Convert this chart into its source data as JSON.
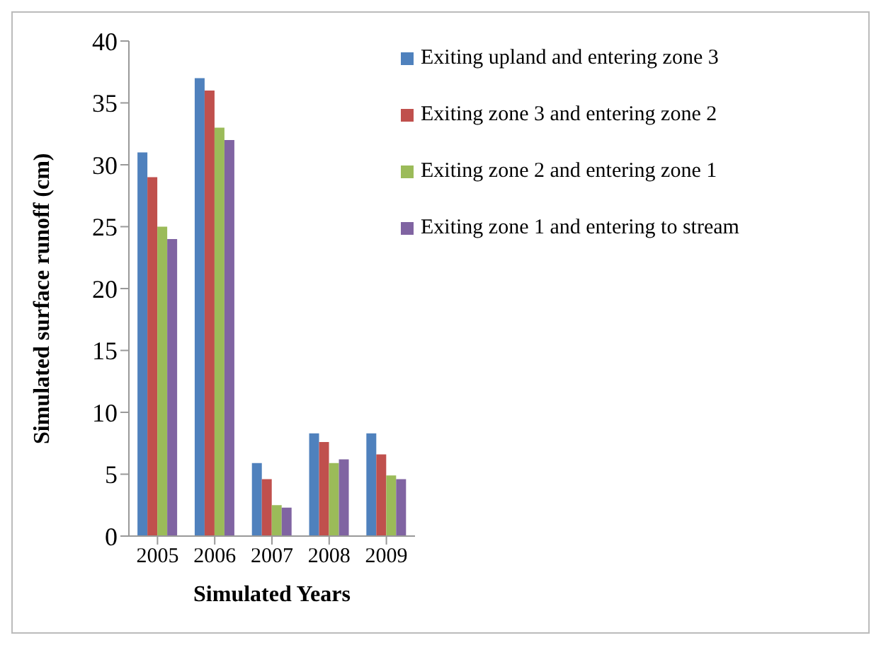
{
  "chart_data": {
    "type": "bar",
    "xlabel": "Simulated  Years",
    "ylabel": "Simulated surface runoff (cm)",
    "categories": [
      "2005",
      "2006",
      "2007",
      "2008",
      "2009"
    ],
    "series": [
      {
        "name": "Exiting upland and entering zone 3",
        "color": "#4f81bd",
        "values": [
          31,
          37,
          5.9,
          8.3,
          8.3
        ]
      },
      {
        "name": "Exiting zone 3 and entering zone 2",
        "color": "#c0504d",
        "values": [
          29,
          36,
          4.6,
          7.6,
          6.6
        ]
      },
      {
        "name": "Exiting zone 2 and entering zone 1",
        "color": "#9bbb59",
        "values": [
          25,
          33,
          2.5,
          5.9,
          4.9
        ]
      },
      {
        "name": "Exiting zone 1 and entering to stream",
        "color": "#8064a2",
        "values": [
          24,
          32,
          2.3,
          6.2,
          4.6
        ]
      }
    ],
    "ylim": [
      0,
      40
    ],
    "yticks": [
      0,
      5,
      10,
      15,
      20,
      25,
      30,
      35,
      40
    ],
    "grid": false,
    "legend": "top right"
  }
}
